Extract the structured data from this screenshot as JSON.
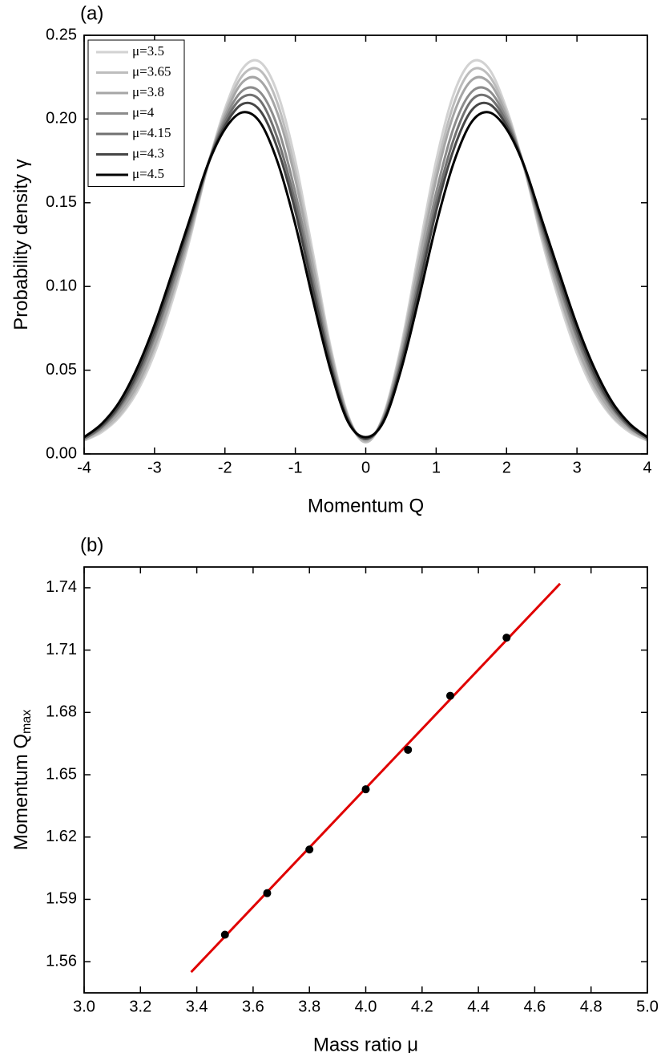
{
  "chart_data": [
    {
      "type": "line",
      "label": "(a)",
      "x_label": "Momentum Q",
      "y_label": "Probability density γ",
      "x": [
        -4,
        -3.75,
        -3.5,
        -3.25,
        -3,
        -2.75,
        -2.5,
        -2.25,
        -2,
        -1.75,
        -1.5,
        -1.25,
        -1,
        -0.75,
        -0.5,
        -0.25,
        0,
        0.25,
        0.5,
        0.75,
        1,
        1.25,
        1.5,
        1.75,
        2,
        2.25,
        2.5,
        2.75,
        3,
        3.25,
        3.5,
        3.75,
        4
      ],
      "series": [
        {
          "name": "μ=3.5",
          "color": "#d2d2d2",
          "values": [
            0.008,
            0.013,
            0.022,
            0.037,
            0.06,
            0.091,
            0.128,
            0.171,
            0.206,
            0.23,
            0.234,
            0.215,
            0.175,
            0.12,
            0.064,
            0.023,
            0.007,
            0.023,
            0.064,
            0.12,
            0.175,
            0.215,
            0.234,
            0.23,
            0.206,
            0.171,
            0.128,
            0.091,
            0.06,
            0.037,
            0.022,
            0.013,
            0.008
          ]
        },
        {
          "name": "μ=3.65",
          "color": "#bdbdbd",
          "values": [
            0.008,
            0.014,
            0.023,
            0.039,
            0.063,
            0.094,
            0.13,
            0.171,
            0.204,
            0.226,
            0.229,
            0.209,
            0.169,
            0.116,
            0.062,
            0.022,
            0.007,
            0.022,
            0.062,
            0.116,
            0.169,
            0.209,
            0.229,
            0.226,
            0.204,
            0.171,
            0.13,
            0.094,
            0.063,
            0.039,
            0.023,
            0.014,
            0.008
          ]
        },
        {
          "name": "μ=3.8",
          "color": "#a6a6a6",
          "values": [
            0.009,
            0.015,
            0.025,
            0.041,
            0.065,
            0.096,
            0.132,
            0.171,
            0.202,
            0.222,
            0.223,
            0.203,
            0.164,
            0.112,
            0.06,
            0.022,
            0.008,
            0.022,
            0.06,
            0.112,
            0.164,
            0.203,
            0.223,
            0.222,
            0.202,
            0.171,
            0.132,
            0.096,
            0.065,
            0.041,
            0.025,
            0.015,
            0.009
          ]
        },
        {
          "name": "μ=4",
          "color": "#8c8c8c",
          "values": [
            0.009,
            0.016,
            0.027,
            0.044,
            0.069,
            0.1,
            0.134,
            0.172,
            0.2,
            0.217,
            0.216,
            0.195,
            0.156,
            0.106,
            0.057,
            0.021,
            0.009,
            0.021,
            0.057,
            0.106,
            0.156,
            0.195,
            0.216,
            0.217,
            0.2,
            0.172,
            0.134,
            0.1,
            0.069,
            0.044,
            0.027,
            0.016,
            0.009
          ]
        },
        {
          "name": "μ=4.15",
          "color": "#717171",
          "values": [
            0.009,
            0.016,
            0.028,
            0.046,
            0.071,
            0.102,
            0.136,
            0.172,
            0.198,
            0.213,
            0.211,
            0.188,
            0.15,
            0.102,
            0.055,
            0.02,
            0.009,
            0.02,
            0.055,
            0.102,
            0.15,
            0.188,
            0.211,
            0.213,
            0.198,
            0.172,
            0.136,
            0.102,
            0.071,
            0.046,
            0.028,
            0.016,
            0.009
          ]
        },
        {
          "name": "μ=4.3",
          "color": "#464646",
          "values": [
            0.01,
            0.017,
            0.029,
            0.048,
            0.074,
            0.105,
            0.138,
            0.172,
            0.196,
            0.209,
            0.205,
            0.182,
            0.145,
            0.098,
            0.053,
            0.02,
            0.009,
            0.02,
            0.053,
            0.098,
            0.145,
            0.182,
            0.205,
            0.209,
            0.196,
            0.172,
            0.138,
            0.105,
            0.074,
            0.048,
            0.029,
            0.017,
            0.01
          ]
        },
        {
          "name": "μ=4.5",
          "color": "#000000",
          "values": [
            0.01,
            0.018,
            0.031,
            0.051,
            0.077,
            0.108,
            0.14,
            0.172,
            0.194,
            0.204,
            0.198,
            0.174,
            0.137,
            0.092,
            0.05,
            0.019,
            0.01,
            0.019,
            0.05,
            0.092,
            0.137,
            0.174,
            0.198,
            0.204,
            0.194,
            0.172,
            0.14,
            0.108,
            0.077,
            0.051,
            0.031,
            0.018,
            0.01
          ]
        }
      ],
      "xlim": [
        -4,
        4
      ],
      "ylim": [
        0,
        0.25
      ],
      "xticks": [
        -4,
        -3,
        -2,
        -1,
        0,
        1,
        2,
        3,
        4
      ],
      "yticks": [
        {
          "value": 0,
          "label": "0.00"
        },
        {
          "value": 0.05,
          "label": "0.05"
        },
        {
          "value": 0.1,
          "label": "0.10"
        },
        {
          "value": 0.15,
          "label": "0.15"
        },
        {
          "value": 0.2,
          "label": "0.20"
        },
        {
          "value": 0.25,
          "label": "0.25"
        }
      ],
      "legend": "upper left"
    },
    {
      "type": "scatter",
      "label": "(b)",
      "x_label": "Mass ratio μ",
      "y_label": "Momentum Q",
      "y_label_sub": "max",
      "series": [
        {
          "color": "#000000",
          "marker": "circle",
          "x": [
            3.5,
            3.65,
            3.8,
            4,
            4.15,
            4.3,
            4.5
          ],
          "values": [
            1.573,
            1.593,
            1.614,
            1.643,
            1.662,
            1.688,
            1.716
          ]
        },
        {
          "color": "#e00000",
          "marker": "line",
          "x": [
            3.38,
            4.69
          ],
          "values": [
            1.555,
            1.742
          ]
        }
      ],
      "xlim": [
        3,
        5
      ],
      "ylim": [
        1.545,
        1.75
      ],
      "xticks": [
        {
          "value": 3,
          "label": "3.0"
        },
        {
          "value": 3.2,
          "label": "3.2"
        },
        {
          "value": 3.4,
          "label": "3.4"
        },
        {
          "value": 3.6,
          "label": "3.6"
        },
        {
          "value": 3.8,
          "label": "3.8"
        },
        {
          "value": 4,
          "label": "4.0"
        },
        {
          "value": 4.2,
          "label": "4.2"
        },
        {
          "value": 4.4,
          "label": "4.4"
        },
        {
          "value": 4.6,
          "label": "4.6"
        },
        {
          "value": 4.8,
          "label": "4.8"
        },
        {
          "value": 5,
          "label": "5.0"
        }
      ],
      "yticks": [
        1.56,
        1.59,
        1.62,
        1.65,
        1.68,
        1.71,
        1.74
      ]
    }
  ]
}
